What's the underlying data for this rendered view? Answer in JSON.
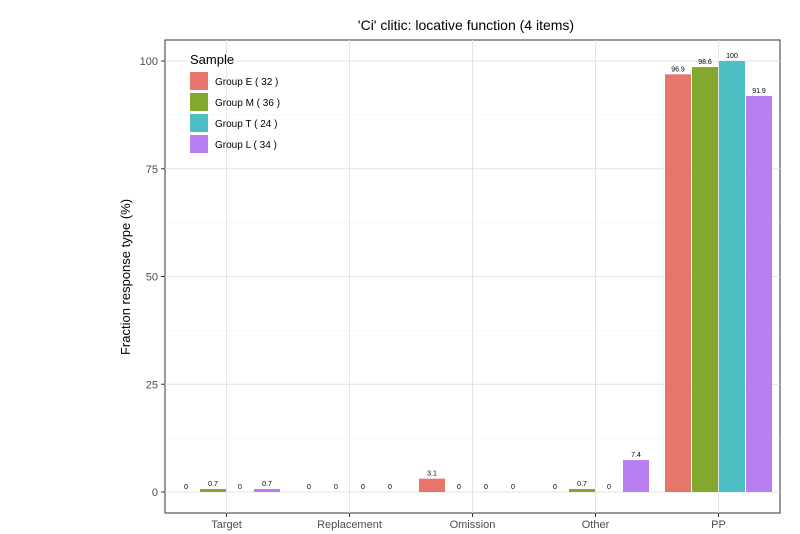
{
  "chart_data": {
    "type": "bar",
    "title": "'Ci' clitic: locative function (4 items)",
    "xlabel": "",
    "ylabel": "Fraction response type (%)",
    "ylim": [
      0,
      104
    ],
    "yticks": [
      0,
      25,
      50,
      75,
      100
    ],
    "grid": true,
    "legend": {
      "title": "Sample",
      "placement": "top-left"
    },
    "categories": [
      "Target",
      "Replacement",
      "Omission",
      "Other",
      "PP"
    ],
    "series": [
      {
        "name": "Group E ( 32 )",
        "color": "#E8756B",
        "values": [
          0,
          0,
          3.1,
          0,
          96.9
        ]
      },
      {
        "name": "Group M ( 36 )",
        "color": "#83A82E",
        "values": [
          0.7,
          0,
          0,
          0.7,
          98.6
        ]
      },
      {
        "name": "Group T ( 24 )",
        "color": "#4DBFC4",
        "values": [
          0,
          0,
          0,
          0,
          100
        ]
      },
      {
        "name": "Group L ( 34 )",
        "color": "#B97EF2",
        "values": [
          0.7,
          0,
          0,
          7.4,
          91.9
        ]
      }
    ]
  }
}
